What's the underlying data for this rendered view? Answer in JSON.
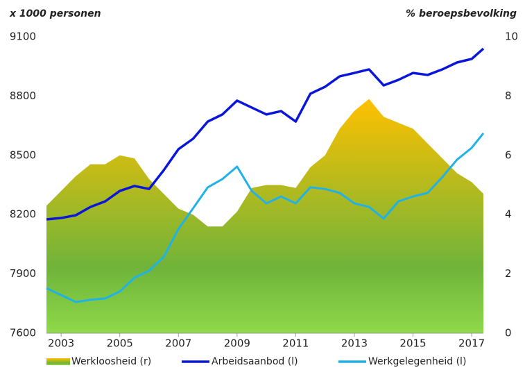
{
  "chart_data": {
    "type": "line",
    "ylabel": "x 1000 personen",
    "y2label": "% beroepsbevolking",
    "x": [
      2002.5,
      2003,
      2003.5,
      2004,
      2004.5,
      2005,
      2005.5,
      2006,
      2006.5,
      2007,
      2007.5,
      2008,
      2008.5,
      2009,
      2009.5,
      2010,
      2010.5,
      2011,
      2011.5,
      2012,
      2012.5,
      2013,
      2013.5,
      2014,
      2014.5,
      2015,
      2015.5,
      2016,
      2016.5,
      2017,
      2017.4
    ],
    "xlim": [
      2002.5,
      2017.4
    ],
    "xticks": [
      2003,
      2005,
      2007,
      2009,
      2011,
      2013,
      2015,
      2017
    ],
    "ylim": [
      7600,
      9100
    ],
    "yticks": [
      7600,
      7900,
      8200,
      8500,
      8800,
      9100
    ],
    "y2lim": [
      0,
      10
    ],
    "y2ticks": [
      0,
      2,
      4,
      6,
      8,
      10
    ],
    "series": [
      {
        "name": "Werkloosheid (r)",
        "type": "area",
        "axis": "y2",
        "color": "#ffc000",
        "gradient": [
          "#ffc000",
          "#6fb43a",
          "#8fd94a"
        ],
        "values": [
          4.3,
          4.8,
          5.3,
          5.7,
          5.7,
          6.0,
          5.9,
          5.2,
          4.7,
          4.2,
          4.0,
          3.6,
          3.6,
          4.1,
          4.9,
          5.0,
          5.0,
          4.9,
          5.6,
          6.0,
          6.9,
          7.5,
          7.9,
          7.3,
          7.1,
          6.9,
          6.4,
          5.9,
          5.4,
          5.1,
          4.7
        ]
      },
      {
        "name": "Arbeidsaanbod (l)",
        "color": "#0a16d8",
        "values": [
          8176,
          8183,
          8197,
          8239,
          8267,
          8320,
          8345,
          8330,
          8425,
          8531,
          8584,
          8671,
          8707,
          8777,
          8742,
          8707,
          8724,
          8671,
          8812,
          8847,
          8900,
          8917,
          8935,
          8854,
          8882,
          8917,
          8907,
          8935,
          8970,
          8988,
          9040
        ]
      },
      {
        "name": "Werkgelegenheid (l)",
        "color": "#1fb2e8",
        "values": [
          7828,
          7793,
          7758,
          7769,
          7776,
          7811,
          7881,
          7916,
          7986,
          8127,
          8232,
          8338,
          8380,
          8443,
          8320,
          8257,
          8292,
          8257,
          8338,
          8330,
          8310,
          8257,
          8239,
          8180,
          8267,
          8292,
          8310,
          8390,
          8478,
          8538,
          8612
        ]
      }
    ]
  }
}
